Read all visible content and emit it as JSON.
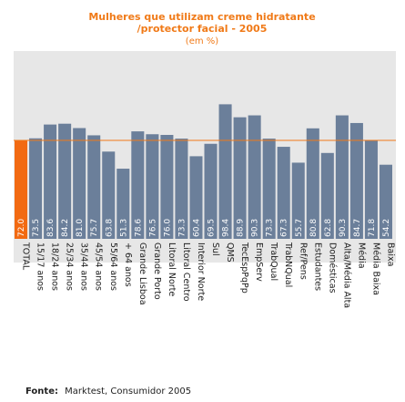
{
  "chart_data": {
    "type": "bar",
    "title": "Mulheres que utilizam creme hidratante",
    "title_line2": "/protector facial - 2005",
    "subtitle": "(em %)",
    "categories": [
      "TOTAL",
      "15/17 anos",
      "18/24 anos",
      "25/34 anos",
      "35/44 anos",
      "45/54 anos",
      "55/64 anos",
      "+ 64 anos",
      "Grande Lisboa",
      "Grande Porto",
      "Litoral Norte",
      "Litoral Centro",
      "Interior Norte",
      "Sul",
      "QMS",
      "TecEspPqPp",
      "EmpServ",
      "TrabQual",
      "TrabNQual",
      "Ref/Pens",
      "Estudantes",
      "Domésticas",
      "Alta/Média Alta",
      "Média",
      "Média Baixa",
      "Baixa"
    ],
    "values": [
      72.0,
      73.5,
      83.6,
      84.2,
      81.0,
      75.7,
      63.8,
      51.3,
      78.6,
      76.5,
      76.0,
      73.3,
      60.4,
      69.5,
      98.4,
      88.9,
      90.3,
      73.3,
      67.3,
      55.7,
      80.8,
      62.8,
      90.3,
      84.7,
      71.8,
      54.2
    ],
    "value_labels": [
      "72.0",
      "73.5",
      "83.6",
      "84.2",
      "81.0",
      "75.7",
      "63.8",
      "51.3",
      "78.6",
      "76.5",
      "76.0",
      "73.3",
      "60.4",
      "69.5",
      "98.4",
      "88.9",
      "90.3",
      "73.3",
      "67.3",
      "55.7",
      "80.8",
      "62.8",
      "90.3",
      "84.7",
      "71.8",
      "54.2"
    ],
    "highlight_index": 0,
    "reference_value": 72.0,
    "ylim": [
      0,
      100
    ],
    "grid": false,
    "legend": "none",
    "colors": {
      "bar": "#6b7f9a",
      "highlight": "#f26a12",
      "reference_line": "#f07a18",
      "plot_background": "#e7e7e7",
      "value_label": "#ffffff"
    }
  },
  "source": {
    "label": "Fonte:",
    "text": "Marktest, Consumidor 2005"
  }
}
